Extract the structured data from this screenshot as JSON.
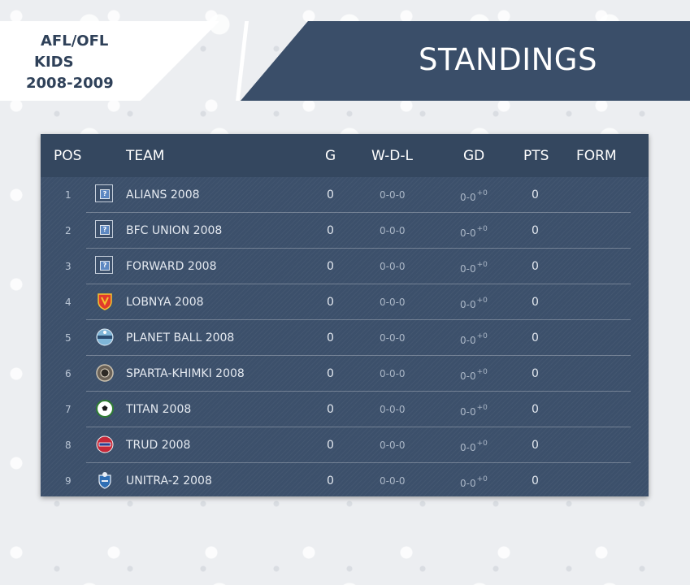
{
  "league": {
    "line1": "AFL/OFL",
    "line2": "KIDS",
    "line3": "2008-2009"
  },
  "page_title": "STANDINGS",
  "table": {
    "columns": {
      "pos": "POS",
      "team": "TEAM",
      "g": "G",
      "wdl": "W-D-L",
      "gd": "GD",
      "pts": "PTS",
      "form": "FORM"
    },
    "rows": [
      {
        "pos": "1",
        "team": "ALIANS 2008",
        "g": "0",
        "wdl": "0-0-0",
        "gd": "0-0",
        "gd_sup": "+0",
        "pts": "0",
        "logo": "placeholder-icon"
      },
      {
        "pos": "2",
        "team": "BFC UNION 2008",
        "g": "0",
        "wdl": "0-0-0",
        "gd": "0-0",
        "gd_sup": "+0",
        "pts": "0",
        "logo": "placeholder-icon"
      },
      {
        "pos": "3",
        "team": "FORWARD 2008",
        "g": "0",
        "wdl": "0-0-0",
        "gd": "0-0",
        "gd_sup": "+0",
        "pts": "0",
        "logo": "placeholder-icon"
      },
      {
        "pos": "4",
        "team": "LOBNYA 2008",
        "g": "0",
        "wdl": "0-0-0",
        "gd": "0-0",
        "gd_sup": "+0",
        "pts": "0",
        "logo": "shield-crest-icon"
      },
      {
        "pos": "5",
        "team": "PLANET BALL 2008",
        "g": "0",
        "wdl": "0-0-0",
        "gd": "0-0",
        "gd_sup": "+0",
        "pts": "0",
        "logo": "planet-ball-crest-icon"
      },
      {
        "pos": "6",
        "team": "SPARTA-KHIMKI 2008",
        "g": "0",
        "wdl": "0-0-0",
        "gd": "0-0",
        "gd_sup": "+0",
        "pts": "0",
        "logo": "round-crest-icon"
      },
      {
        "pos": "7",
        "team": "TITAN 2008",
        "g": "0",
        "wdl": "0-0-0",
        "gd": "0-0",
        "gd_sup": "+0",
        "pts": "0",
        "logo": "ball-crest-icon"
      },
      {
        "pos": "8",
        "team": "TRUD 2008",
        "g": "0",
        "wdl": "0-0-0",
        "gd": "0-0",
        "gd_sup": "+0",
        "pts": "0",
        "logo": "red-crest-icon"
      },
      {
        "pos": "9",
        "team": "UNITRA-2 2008",
        "g": "0",
        "wdl": "0-0-0",
        "gd": "0-0",
        "gd_sup": "+0",
        "pts": "0",
        "logo": "blue-crest-icon"
      }
    ]
  },
  "colors": {
    "panel": "#3c506b",
    "header": "#34475f",
    "banner": "#3a4e69",
    "league_text": "#2f4159"
  }
}
